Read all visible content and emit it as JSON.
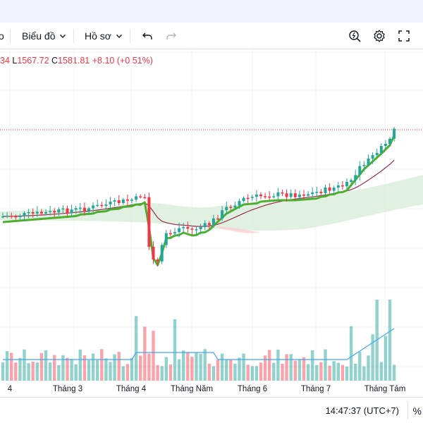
{
  "toolbar": {
    "partial_label": "o",
    "chart_menu_label": "Biểu đồ",
    "profile_menu_label": "Hồ sơ",
    "icons": [
      "chevron-down-icon",
      "undo-icon",
      "redo-icon",
      "magnifier-icon",
      "gear-icon",
      "fullscreen-icon"
    ]
  },
  "legend": {
    "open_tail": "34",
    "low_key": "L",
    "low_value": "1567.72",
    "close_key": "C",
    "close_value": "1581.81",
    "change": "+8.10 (+0.51%)"
  },
  "colors": {
    "up": "#26a69a",
    "down": "#f23645",
    "ma_line": "#9c2b4e",
    "green_line": "#4caf2e",
    "volume_ma": "#42a5f5",
    "cloud_green": "#c8e6c9",
    "cloud_red": "#ffcdd2"
  },
  "x_axis_labels": [
    "4",
    "Tháng 3",
    "Tháng 4",
    "Tháng Năm",
    "Tháng 6",
    "Tháng 7",
    "Tháng Tám"
  ],
  "status_bar": {
    "clock": "14:47:37 (UTC+7)",
    "percent_button": "%"
  },
  "chart_data": {
    "type": "candlestick",
    "title": "",
    "xlabel": "",
    "ylabel": "",
    "price_axis_visible": false,
    "x_category_labels": [
      "4",
      "Tháng 3",
      "Tháng 4",
      "Tháng Năm",
      "Tháng 6",
      "Tháng 7",
      "Tháng Tám"
    ],
    "last_bar": {
      "low": 1567.72,
      "close": 1581.81,
      "change": 8.1,
      "change_pct": 0.51
    },
    "overlays": [
      "moving average line",
      "green trailing line",
      "ichimoku-style cloud"
    ],
    "volume_pane": true,
    "grid": true
  }
}
